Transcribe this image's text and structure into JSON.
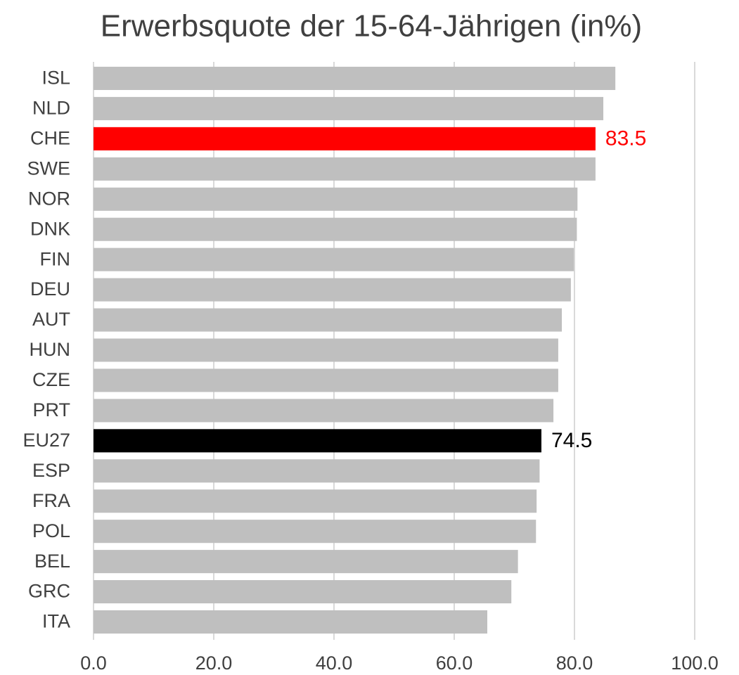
{
  "chart_data": {
    "type": "hbar",
    "title": "Erwerbsquote der 15-64-Jährigen (in%)",
    "categories": [
      "ISL",
      "NLD",
      "CHE",
      "SWE",
      "NOR",
      "DNK",
      "FIN",
      "DEU",
      "AUT",
      "HUN",
      "CZE",
      "PRT",
      "EU27",
      "ESP",
      "FRA",
      "POL",
      "BEL",
      "GRC",
      "ITA"
    ],
    "values": [
      86.8,
      84.8,
      83.5,
      83.5,
      80.5,
      80.4,
      79.9,
      79.4,
      77.9,
      77.3,
      77.3,
      76.5,
      74.5,
      74.2,
      73.7,
      73.6,
      70.6,
      69.5,
      65.5
    ],
    "value_labels": [
      null,
      null,
      "83.5",
      null,
      null,
      null,
      null,
      null,
      null,
      null,
      null,
      null,
      "74.5",
      null,
      null,
      null,
      null,
      null,
      null
    ],
    "colors": [
      "#bfbfbf",
      "#bfbfbf",
      "#ff0000",
      "#bfbfbf",
      "#bfbfbf",
      "#bfbfbf",
      "#bfbfbf",
      "#bfbfbf",
      "#bfbfbf",
      "#bfbfbf",
      "#bfbfbf",
      "#bfbfbf",
      "#000000",
      "#bfbfbf",
      "#bfbfbf",
      "#bfbfbf",
      "#bfbfbf",
      "#bfbfbf",
      "#bfbfbf"
    ],
    "xlim": [
      0,
      100
    ],
    "xticks": [
      {
        "value": 0,
        "label": "0.0"
      },
      {
        "value": 20,
        "label": "20.0"
      },
      {
        "value": 40,
        "label": "40.0"
      },
      {
        "value": 60,
        "label": "60.0"
      },
      {
        "value": 80,
        "label": "80.0"
      },
      {
        "value": 100,
        "label": "100.0"
      }
    ],
    "grid": true
  }
}
